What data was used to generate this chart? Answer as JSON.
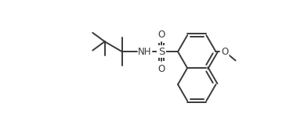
{
  "bg_color": "#ffffff",
  "line_color": "#3a3a3a",
  "line_width": 1.4,
  "text_color": "#3a3a3a",
  "font_size": 8.5,
  "figsize": [
    3.65,
    1.55
  ],
  "dpi": 100,
  "xlim": [
    0,
    7.3
  ],
  "ylim": [
    -1.6,
    2.2
  ]
}
